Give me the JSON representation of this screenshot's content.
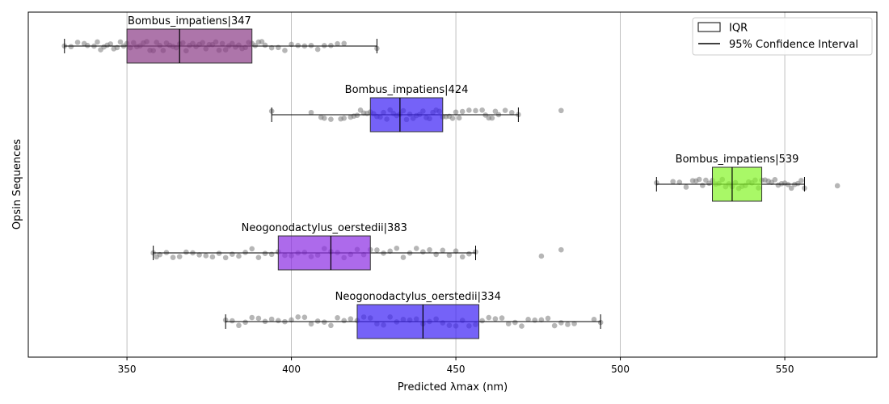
{
  "chart_data": {
    "type": "boxplot",
    "xlabel": "Predicted λmax (nm)",
    "ylabel": "Opsin Sequences",
    "xlim": [
      320,
      578
    ],
    "x_ticks": [
      350,
      400,
      450,
      500,
      550
    ],
    "grid": "vertical",
    "legend": {
      "placement": "top-right",
      "entries": [
        {
          "label": "IQR",
          "kind": "box"
        },
        {
          "label": "95% Confidence Interval",
          "kind": "line"
        }
      ]
    },
    "series": [
      {
        "name": "Bombus_impatiens|347",
        "q1": 350,
        "median": 366,
        "q3": 388,
        "ci_low": 331,
        "ci_high": 426,
        "color": "#8a3b86",
        "points": [
          331,
          333,
          335,
          337,
          338,
          340,
          341,
          342,
          343,
          344,
          345,
          346,
          347,
          348,
          349,
          350,
          351,
          352,
          353,
          354,
          355,
          356,
          357,
          358,
          359,
          360,
          361,
          362,
          363,
          364,
          365,
          366,
          367,
          368,
          369,
          370,
          371,
          372,
          373,
          374,
          375,
          376,
          377,
          378,
          379,
          380,
          381,
          382,
          383,
          384,
          385,
          386,
          387,
          388,
          389,
          390,
          391,
          392,
          394,
          396,
          398,
          400,
          402,
          404,
          406,
          408,
          410,
          412,
          414,
          416,
          426
        ]
      },
      {
        "name": "Bombus_impatiens|424",
        "q1": 424,
        "median": 433,
        "q3": 446,
        "ci_low": 394,
        "ci_high": 469,
        "color": "#3b1ff5",
        "points": [
          394,
          406,
          409,
          410,
          412,
          415,
          416,
          418,
          419,
          420,
          421,
          422,
          423,
          424,
          425,
          426,
          427,
          428,
          429,
          430,
          431,
          432,
          433,
          434,
          435,
          436,
          437,
          438,
          439,
          440,
          441,
          442,
          443,
          444,
          445,
          446,
          447,
          448,
          449,
          450,
          451,
          452,
          454,
          456,
          458,
          459,
          460,
          461,
          462,
          463,
          465,
          467,
          469,
          482
        ]
      },
      {
        "name": "Bombus_impatiens|539",
        "q1": 528,
        "median": 534,
        "q3": 543,
        "ci_low": 511,
        "ci_high": 556,
        "color": "#84f526",
        "points": [
          511,
          516,
          518,
          520,
          522,
          523,
          524,
          525,
          526,
          527,
          528,
          529,
          530,
          531,
          532,
          533,
          534,
          535,
          536,
          537,
          538,
          539,
          540,
          541,
          542,
          543,
          544,
          545,
          546,
          547,
          548,
          549,
          550,
          551,
          552,
          553,
          554,
          555,
          556,
          566
        ]
      },
      {
        "name": "Neogonodactylus_oerstedii|383",
        "q1": 396,
        "median": 412,
        "q3": 424,
        "ci_low": 358,
        "ci_high": 456,
        "color": "#8a2be2",
        "points": [
          358,
          359,
          360,
          362,
          364,
          366,
          368,
          370,
          372,
          374,
          376,
          378,
          380,
          382,
          384,
          386,
          388,
          390,
          392,
          394,
          396,
          398,
          400,
          402,
          404,
          406,
          408,
          410,
          412,
          414,
          416,
          418,
          420,
          422,
          424,
          426,
          428,
          430,
          432,
          434,
          436,
          438,
          440,
          442,
          444,
          446,
          448,
          450,
          452,
          454,
          456,
          476,
          482
        ]
      },
      {
        "name": "Neogonodactylus_oerstedii|334",
        "q1": 420,
        "median": 440,
        "q3": 457,
        "ci_low": 380,
        "ci_high": 494,
        "color": "#3b1ff5",
        "points": [
          380,
          382,
          384,
          386,
          388,
          390,
          392,
          394,
          396,
          398,
          400,
          402,
          404,
          406,
          408,
          410,
          412,
          414,
          416,
          418,
          420,
          422,
          424,
          426,
          428,
          430,
          432,
          434,
          436,
          438,
          440,
          442,
          444,
          446,
          448,
          450,
          452,
          454,
          456,
          458,
          460,
          462,
          464,
          466,
          468,
          470,
          472,
          474,
          476,
          478,
          480,
          482,
          484,
          486,
          492,
          494
        ]
      }
    ]
  }
}
